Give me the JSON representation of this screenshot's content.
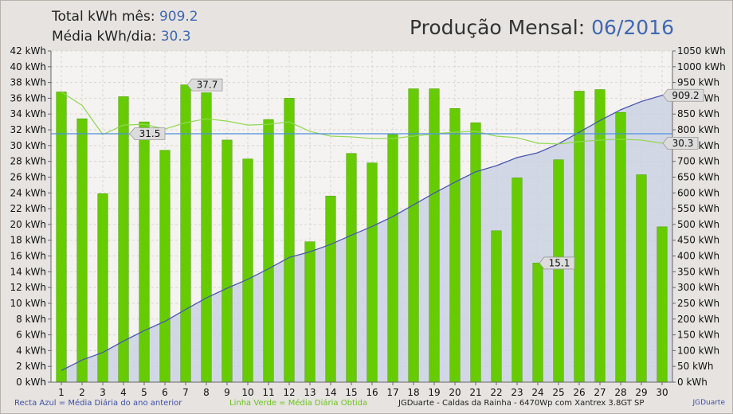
{
  "header": {
    "total_label": "Total kWh mês:",
    "total_value": "909.2",
    "avg_label": "Média kWh/dia:",
    "avg_value": "30.3",
    "title_label": "Produção Mensal:",
    "title_value": "06/2016"
  },
  "footer": {
    "blue_note": "Recta Azul = Média Diária do ano anterior",
    "green_note": "Linha Verde = Média Diária Obtida",
    "system": "JGDuarte  -  Caldas da Rainha  -  6470Wp com Xantrex 3.8GT SP",
    "brand": "JGDuarte"
  },
  "colors": {
    "bar": "#66cc00",
    "bar_edge": "#4fa300",
    "plot_bg": "#f5f3f1",
    "grid": "#d9d5d0",
    "cumulative_line": "#4a56b0",
    "cumulative_fill": "#c9cfe2",
    "avg_line": "#8fd850",
    "ref_line": "#4d8fe0"
  },
  "chart_data": {
    "type": "bar",
    "categories": [
      "1",
      "2",
      "3",
      "4",
      "5",
      "6",
      "7",
      "8",
      "9",
      "10",
      "11",
      "12",
      "13",
      "14",
      "15",
      "16",
      "17",
      "18",
      "19",
      "20",
      "21",
      "22",
      "23",
      "24",
      "25",
      "26",
      "27",
      "28",
      "29",
      "30"
    ],
    "series": [
      {
        "values": [
          36.8,
          33.4,
          23.9,
          36.2,
          33.0,
          29.4,
          37.7,
          36.7,
          30.7,
          28.3,
          33.3,
          36.0,
          17.8,
          23.6,
          29.0,
          27.8,
          31.4,
          37.2,
          37.2,
          34.7,
          32.9,
          19.2,
          25.9,
          15.1,
          28.2,
          36.9,
          37.1,
          34.2,
          26.3,
          19.7
        ]
      },
      {
        "type": "line",
        "axis": "right",
        "values": [
          36.8,
          70.2,
          94.1,
          130.3,
          163.3,
          192.7,
          230.4,
          267.1,
          297.8,
          326.1,
          359.4,
          395.4,
          413.2,
          436.8,
          465.8,
          493.6,
          525.0,
          562.2,
          599.4,
          634.1,
          667.0,
          686.2,
          712.1,
          727.2,
          755.4,
          792.3,
          829.4,
          863.6,
          889.9,
          909.2
        ]
      },
      {
        "type": "line",
        "values": [
          36.8,
          35.1,
          31.4,
          32.6,
          32.7,
          32.1,
          32.9,
          33.4,
          33.1,
          32.6,
          32.7,
          33.0,
          31.8,
          31.2,
          31.1,
          30.9,
          30.9,
          31.2,
          31.5,
          31.7,
          31.8,
          31.2,
          31.0,
          30.3,
          30.2,
          30.5,
          30.7,
          30.8,
          30.7,
          30.3
        ]
      }
    ],
    "reference_line": 31.5,
    "data_labels": [
      {
        "series": 0,
        "index": 6,
        "text": "37.7"
      },
      {
        "series": 0,
        "index": 23,
        "text": "15.1"
      },
      {
        "series": "reference",
        "index": 3,
        "text": "31.5"
      },
      {
        "series": 1,
        "index": 29,
        "text": "909.2"
      },
      {
        "series": 2,
        "index": 29,
        "text": "30.3"
      }
    ],
    "y_left": {
      "min": 0,
      "max": 42,
      "step": 2,
      "unit": "kWh"
    },
    "y_right": {
      "min": 0,
      "max": 1050,
      "step": 50,
      "unit": "kWh"
    },
    "grid": true
  }
}
